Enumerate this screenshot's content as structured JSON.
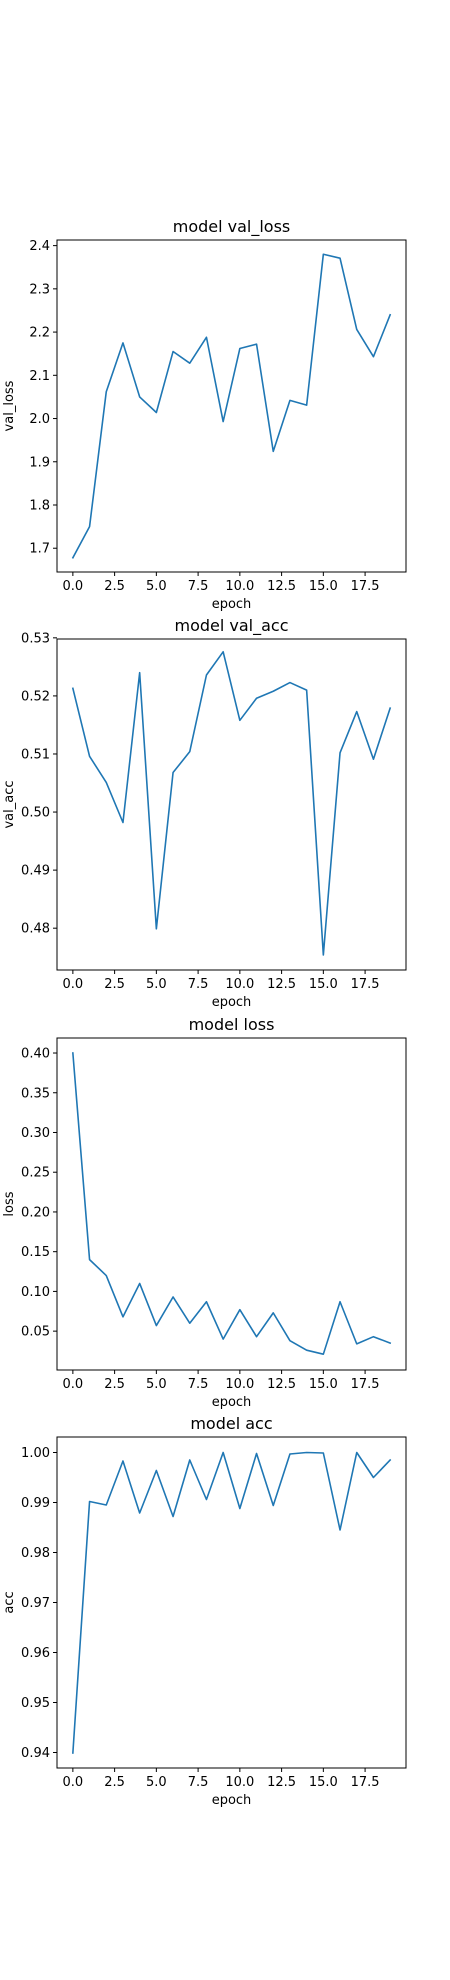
{
  "chart_data": [
    {
      "type": "line",
      "title": "model val_loss",
      "xlabel": "epoch",
      "ylabel": "val_loss",
      "xlim": [
        -0.95,
        19.95
      ],
      "ylim": [
        1.645,
        2.413
      ],
      "xticks": [
        0.0,
        2.5,
        5.0,
        7.5,
        10.0,
        12.5,
        15.0,
        17.5
      ],
      "xtick_labels": [
        "0.0",
        "2.5",
        "5.0",
        "7.5",
        "10.0",
        "12.5",
        "15.0",
        "17.5"
      ],
      "yticks": [
        1.7,
        1.8,
        1.9,
        2.0,
        2.1,
        2.2,
        2.3,
        2.4
      ],
      "ytick_labels": [
        "1.7",
        "1.8",
        "1.9",
        "2.0",
        "2.1",
        "2.2",
        "2.3",
        "2.4"
      ],
      "grid": false,
      "color": "#1f77b4",
      "x": [
        0,
        1,
        2,
        3,
        4,
        5,
        6,
        7,
        8,
        9,
        10,
        11,
        12,
        13,
        14,
        15,
        16,
        17,
        18,
        19
      ],
      "values": [
        1.678,
        1.75,
        2.062,
        2.175,
        2.05,
        2.014,
        2.155,
        2.128,
        2.188,
        1.993,
        2.162,
        2.172,
        1.924,
        2.042,
        2.031,
        2.38,
        2.371,
        2.206,
        2.143,
        2.24
      ]
    },
    {
      "type": "line",
      "title": "model val_acc",
      "xlabel": "epoch",
      "ylabel": "val_acc",
      "xlim": [
        -0.95,
        19.95
      ],
      "ylim": [
        0.4728,
        0.5298
      ],
      "xticks": [
        0.0,
        2.5,
        5.0,
        7.5,
        10.0,
        12.5,
        15.0,
        17.5
      ],
      "xtick_labels": [
        "0.0",
        "2.5",
        "5.0",
        "7.5",
        "10.0",
        "12.5",
        "15.0",
        "17.5"
      ],
      "yticks": [
        0.48,
        0.49,
        0.5,
        0.51,
        0.52,
        0.53
      ],
      "ytick_labels": [
        "0.48",
        "0.49",
        "0.50",
        "0.51",
        "0.52",
        "0.53"
      ],
      "grid": false,
      "color": "#1f77b4",
      "x": [
        0,
        1,
        2,
        3,
        4,
        5,
        6,
        7,
        8,
        9,
        10,
        11,
        12,
        13,
        14,
        15,
        16,
        17,
        18,
        19
      ],
      "values": [
        0.5213,
        0.5096,
        0.5051,
        0.4982,
        0.524,
        0.4799,
        0.5068,
        0.5104,
        0.5236,
        0.5276,
        0.5158,
        0.5196,
        0.5208,
        0.5223,
        0.521,
        0.4754,
        0.5102,
        0.5173,
        0.5091,
        0.5179
      ]
    },
    {
      "type": "line",
      "title": "model loss",
      "xlabel": "epoch",
      "ylabel": "loss",
      "xlim": [
        -0.95,
        19.95
      ],
      "ylim": [
        0.0011,
        0.4189
      ],
      "xticks": [
        0.0,
        2.5,
        5.0,
        7.5,
        10.0,
        12.5,
        15.0,
        17.5
      ],
      "xtick_labels": [
        "0.0",
        "2.5",
        "5.0",
        "7.5",
        "10.0",
        "12.5",
        "15.0",
        "17.5"
      ],
      "yticks": [
        0.05,
        0.1,
        0.15,
        0.2,
        0.25,
        0.3,
        0.35,
        0.4
      ],
      "ytick_labels": [
        "0.05",
        "0.10",
        "0.15",
        "0.20",
        "0.25",
        "0.30",
        "0.35",
        "0.40"
      ],
      "grid": false,
      "color": "#1f77b4",
      "x": [
        0,
        1,
        2,
        3,
        4,
        5,
        6,
        7,
        8,
        9,
        10,
        11,
        12,
        13,
        14,
        15,
        16,
        17,
        18,
        19
      ],
      "values": [
        0.4,
        0.14,
        0.12,
        0.068,
        0.11,
        0.057,
        0.093,
        0.06,
        0.087,
        0.04,
        0.077,
        0.043,
        0.073,
        0.038,
        0.026,
        0.021,
        0.087,
        0.034,
        0.043,
        0.035
      ]
    },
    {
      "type": "line",
      "title": "model acc",
      "xlabel": "epoch",
      "ylabel": "acc",
      "xlim": [
        -0.95,
        19.95
      ],
      "ylim": [
        0.9369,
        1.0031
      ],
      "xticks": [
        0.0,
        2.5,
        5.0,
        7.5,
        10.0,
        12.5,
        15.0,
        17.5
      ],
      "xtick_labels": [
        "0.0",
        "2.5",
        "5.0",
        "7.5",
        "10.0",
        "12.5",
        "15.0",
        "17.5"
      ],
      "yticks": [
        0.94,
        0.95,
        0.96,
        0.97,
        0.98,
        0.99,
        1.0
      ],
      "ytick_labels": [
        "0.94",
        "0.95",
        "0.96",
        "0.97",
        "0.98",
        "0.99",
        "1.00"
      ],
      "grid": false,
      "color": "#1f77b4",
      "x": [
        0,
        1,
        2,
        3,
        4,
        5,
        6,
        7,
        8,
        9,
        10,
        11,
        12,
        13,
        14,
        15,
        16,
        17,
        18,
        19
      ],
      "values": [
        0.9399,
        0.9902,
        0.9895,
        0.9983,
        0.9879,
        0.9964,
        0.9872,
        0.9985,
        0.9906,
        1.0,
        0.9888,
        0.9998,
        0.9894,
        0.9997,
        1.0,
        0.9999,
        0.9845,
        1.0,
        0.995,
        0.9985
      ]
    }
  ]
}
